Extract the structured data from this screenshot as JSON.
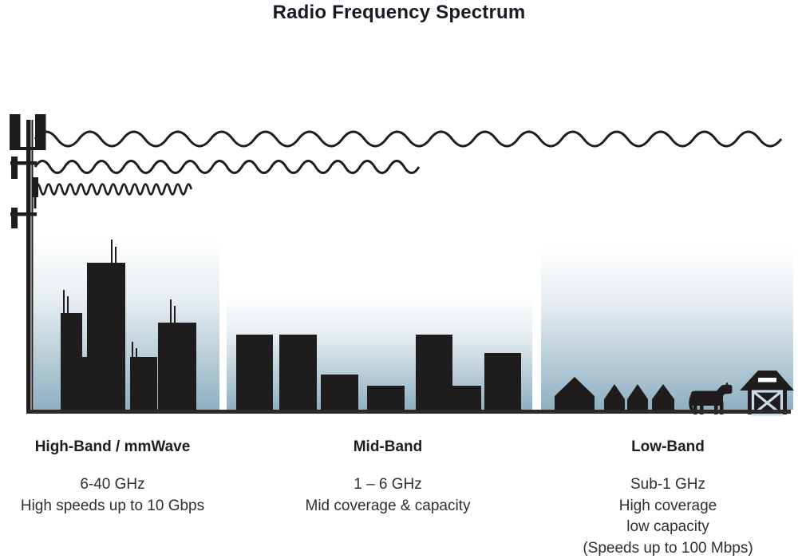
{
  "title": "Radio Frequency Spectrum",
  "bands": [
    {
      "id": "high-band",
      "label": "High-Band / mmWave",
      "range": "6-40 GHz",
      "details": [
        "High speeds up to 10 Gbps"
      ],
      "scene": "city-skyline"
    },
    {
      "id": "mid-band",
      "label": "Mid-Band",
      "range": "1 – 6 GHz",
      "details": [
        "Mid coverage & capacity"
      ],
      "scene": "midrise-buildings"
    },
    {
      "id": "low-band",
      "label": "Low-Band",
      "range": "Sub-1 GHz",
      "details": [
        "High coverage",
        "low capacity",
        "(Speeds up to 100 Mbps)"
      ],
      "scene": "farm-houses-cow-barn"
    }
  ],
  "icons": {
    "tower": "cell-tower-icon",
    "low_frequency_wave": "long-wavelength-wave",
    "mid_frequency_wave": "medium-wavelength-wave",
    "high_frequency_wave": "short-wavelength-wave",
    "cow": "cow-icon",
    "barn": "barn-icon"
  },
  "colors": {
    "ink": "#1e1c1c",
    "sky_top": "#ffffff",
    "sky_bottom": "#8fb0c2",
    "ground": "#2b2929",
    "title_text": "#171b25",
    "body_text": "#2e2e30"
  }
}
